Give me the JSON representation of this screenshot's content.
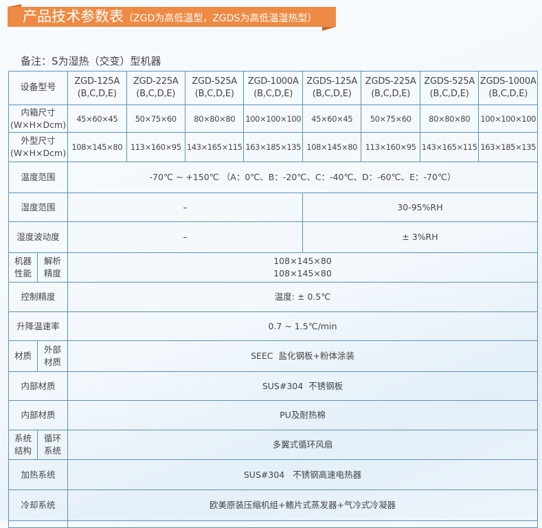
{
  "banner": {
    "title": "产品技术参数表",
    "subtitle": "（ZGD为高低温型，ZGDS为高低温湿热型）"
  },
  "note": "备注：S为湿热（交变）型机器",
  "colors": {
    "banner": "#ee8a43",
    "border": "#5a90bf"
  },
  "table": {
    "model_label": "设备型号",
    "models": [
      {
        "name": "ZGD-125A",
        "sub": "(B,C,D,E)"
      },
      {
        "name": "ZGD-225A",
        "sub": "(B,C,D,E)"
      },
      {
        "name": "ZGD-525A",
        "sub": "(B,C,D,E)"
      },
      {
        "name": "ZGD-1000A",
        "sub": "(B,C,D,E)"
      },
      {
        "name": "ZGDS-125A",
        "sub": "(B,C,D,E)"
      },
      {
        "name": "ZGDS-225A",
        "sub": "(B,C,D,E)"
      },
      {
        "name": "ZGDS-525A",
        "sub": "(B,C,D,E)"
      },
      {
        "name": "ZGDS-1000A",
        "sub": "(B,C,D,E)"
      }
    ],
    "inner": {
      "label": "内箱尺寸",
      "unit": "(W×H×Dcm)",
      "values": [
        "45×60×45",
        "50×75×60",
        "80×80×80",
        "100×100×100",
        "45×60×45",
        "50×75×60",
        "80×80×80",
        "100×100×100"
      ]
    },
    "outer": {
      "label": "外型尺寸",
      "unit": "(W×H×Dcm)",
      "values": [
        "108×145×80",
        "113×160×95",
        "143×165×115",
        "163×185×135",
        "108×145×80",
        "113×160×95",
        "143×165×115",
        "163×185×135"
      ]
    },
    "temp_range": {
      "label": "温度范围",
      "value": "-70℃ ~ +150℃  （A：0℃、B：-20℃、C：-40℃、D：-60℃、E：-70℃）"
    },
    "humidity_range": {
      "label": "湿度范围",
      "zgd": "–",
      "zgds": "30-95%RH"
    },
    "humidity_fluct": {
      "label": "湿度波动度",
      "zgd": "–",
      "zgds": "± 3%RH"
    },
    "performance": {
      "label": "机器性能",
      "sub": "解析精度",
      "line1": "108×145×80",
      "line2": "108×145×80"
    },
    "control": {
      "label": "控制精度",
      "value": "温度: ± 0.5℃"
    },
    "rate": {
      "label": "升降温速率",
      "value": "0.7 ~ 1.5℃/min"
    },
    "material": {
      "label": "材质",
      "sub": "外部材质",
      "value": "SEEC  盐化钢板+粉体涂装"
    },
    "inner_material1": {
      "label": "内部材质",
      "value": "SUS#304  不锈钢板"
    },
    "inner_material2": {
      "label": "内部材质",
      "value": "PU及耐热棉"
    },
    "system": {
      "label": "系统结构",
      "sub": "循环系统",
      "value": "多翼式循环风扇"
    },
    "heating": {
      "label": "加热系统",
      "value": "SUS#304   不锈钢高速电热器"
    },
    "cooling": {
      "label": "冷却系统",
      "value": "欧美原装压缩机组+鳍片式蒸发器+气冷式冷凝器"
    }
  }
}
